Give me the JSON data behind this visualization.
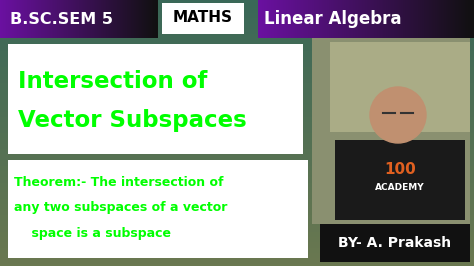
{
  "bg_color": "#4a7060",
  "title_bar_black": "#111111",
  "title_bar_purple_dark": "#3a0050",
  "title_bar_purple_mid": "#7a10a0",
  "title_bar_white": "#ffffff",
  "white_box_color": "#ffffff",
  "bright_green": "#00ff00",
  "black_text": "#000000",
  "white_text": "#ffffff",
  "header_left": "B.SC.SEM 5",
  "header_mid": "MATHS",
  "header_right": "Linear Algebra",
  "main_title_line1": "Intersection of",
  "main_title_line2": "Vector Subspaces",
  "theorem_line1": "Theorem:- The intersection of",
  "theorem_line2": "any two subspaces of a vector",
  "theorem_line3": "    space is a subspace",
  "byline": "BY- A. Prakash",
  "fig_width": 4.74,
  "fig_height": 2.66,
  "dpi": 100
}
